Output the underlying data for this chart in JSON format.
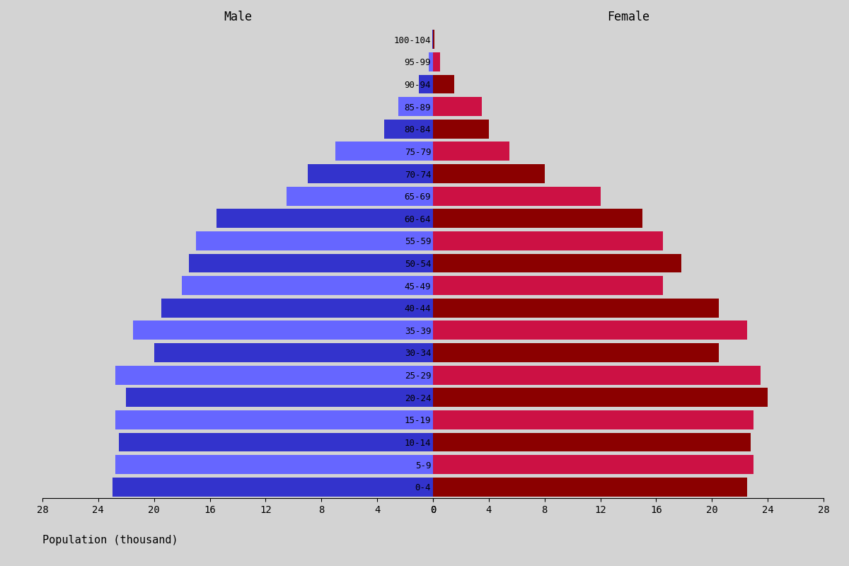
{
  "age_groups": [
    "0-4",
    "5-9",
    "10-14",
    "15-19",
    "20-24",
    "25-29",
    "30-34",
    "35-39",
    "40-44",
    "45-49",
    "50-54",
    "55-59",
    "60-64",
    "65-69",
    "70-74",
    "75-79",
    "80-84",
    "85-89",
    "90-94",
    "95-99",
    "100-104"
  ],
  "male": [
    23.0,
    22.8,
    22.5,
    22.8,
    22.0,
    22.8,
    20.0,
    21.5,
    19.5,
    18.0,
    17.5,
    17.0,
    15.5,
    10.5,
    9.0,
    7.0,
    3.5,
    2.5,
    1.0,
    0.3,
    0.05
  ],
  "female": [
    22.5,
    23.0,
    22.8,
    23.0,
    24.0,
    23.5,
    20.5,
    22.5,
    20.5,
    16.5,
    17.8,
    16.5,
    15.0,
    12.0,
    8.0,
    5.5,
    4.0,
    3.5,
    1.5,
    0.5,
    0.1
  ],
  "male_colors_alt": [
    "#0000CD",
    "#4444FF"
  ],
  "female_colors_alt": [
    "#8B0000",
    "#CC0044"
  ],
  "title_male": "Male",
  "title_female": "Female",
  "xlabel": "Population (thousand)",
  "xlim": 28,
  "background_color": "#d3d3d3",
  "bar_height": 0.85
}
